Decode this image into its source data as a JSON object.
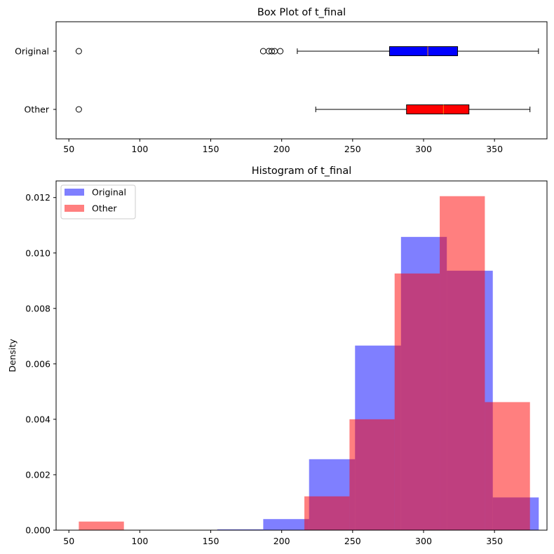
{
  "chart_data": [
    {
      "type": "box",
      "title": "Box Plot of t_final",
      "orientation": "horizontal",
      "xlim": [
        41,
        387
      ],
      "xticks": [
        50,
        100,
        150,
        200,
        250,
        300,
        350
      ],
      "series": [
        {
          "name": "Original",
          "color": "#0000ff",
          "whisker_low": 211,
          "q1": 276,
          "median": 303,
          "q3": 324,
          "whisker_high": 381,
          "outliers": [
            57,
            187,
            191,
            193,
            195,
            199
          ]
        },
        {
          "name": "Other",
          "color": "#ff0000",
          "whisker_low": 224,
          "q1": 288,
          "median": 314,
          "q3": 332,
          "whisker_high": 375,
          "outliers": [
            57
          ]
        }
      ]
    },
    {
      "type": "histogram",
      "title": "Histogram of t_final",
      "ylabel": "Density",
      "xlim": [
        41,
        387
      ],
      "ylim": [
        0,
        0.0126
      ],
      "xticks": [
        50,
        100,
        150,
        200,
        250,
        300,
        350
      ],
      "yticks": [
        "0.000",
        "0.002",
        "0.004",
        "0.006",
        "0.008",
        "0.010",
        "0.012"
      ],
      "legend_position": "upper-left",
      "series": [
        {
          "name": "Original",
          "color": "#0000ff",
          "opacity": 0.5,
          "bins": [
            [
              154.6,
              187.0,
              3e-05
            ],
            [
              187.0,
              219.3,
              0.0004
            ],
            [
              219.3,
              251.7,
              0.00256
            ],
            [
              251.7,
              284.1,
              0.00666
            ],
            [
              284.1,
              316.4,
              0.01058
            ],
            [
              316.4,
              348.8,
              0.00936
            ],
            [
              348.8,
              381.2,
              0.00118
            ]
          ]
        },
        {
          "name": "Other",
          "color": "#ff0000",
          "opacity": 0.5,
          "bins": [
            [
              57.0,
              88.8,
              0.00031
            ],
            [
              88.8,
              120.6,
              0.0
            ],
            [
              120.6,
              152.4,
              0.0
            ],
            [
              152.4,
              184.2,
              0.0
            ],
            [
              184.2,
              216.0,
              0.0
            ],
            [
              216.0,
              247.8,
              0.00122
            ],
            [
              247.8,
              279.6,
              0.004
            ],
            [
              279.6,
              311.4,
              0.00926
            ],
            [
              311.4,
              343.2,
              0.01205
            ],
            [
              343.2,
              375.0,
              0.00462
            ]
          ]
        }
      ]
    }
  ]
}
